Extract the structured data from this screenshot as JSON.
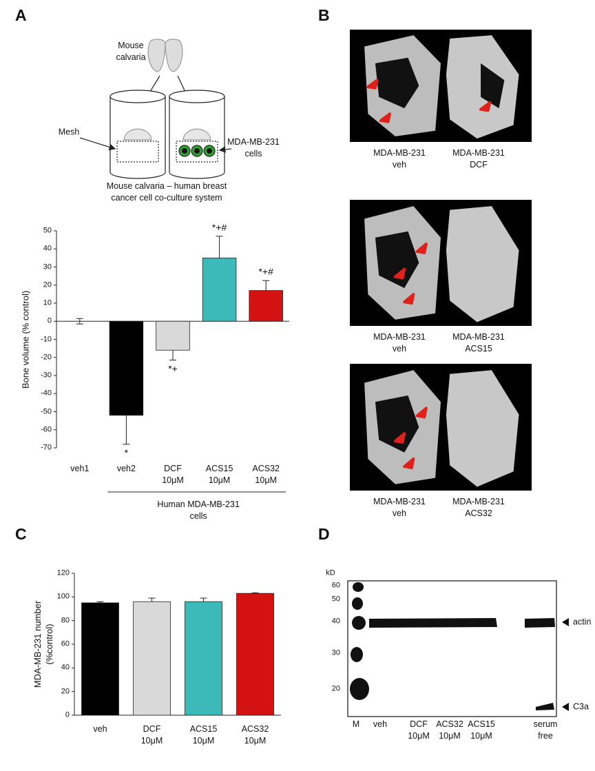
{
  "panel_labels": [
    "A",
    "B",
    "C",
    "D"
  ],
  "schematic": {
    "calvaria_label": "Mouse\ncalvaria",
    "mesh_label": "Mesh",
    "cells_label": "MDA-MB-231\ncells",
    "caption": "Mouse calvaria – human breast\ncancer cell co-culture system"
  },
  "chart_data": [
    {
      "type": "bar",
      "ylabel": "Bone volume (% control)",
      "categories": [
        "veh1",
        "veh2",
        "DCF\n10μM",
        "ACS15\n10μM",
        "ACS32\n10μM"
      ],
      "values": [
        0,
        -52,
        -16,
        35,
        17
      ],
      "errors": [
        1.5,
        16,
        5.5,
        12,
        5.5
      ],
      "colors": [
        "#000000",
        "#000000",
        "#d9d9d9",
        "#3cb9b9",
        "#d41212"
      ],
      "annotations": [
        null,
        "*",
        "*+",
        "*+#",
        "*+#"
      ],
      "group_label": "Human MDA-MB-231\ncells",
      "ylim": [
        -70,
        50
      ],
      "yticks": [
        -70,
        -60,
        -50,
        -40,
        -30,
        -20,
        -10,
        0,
        10,
        20,
        30,
        40,
        50
      ]
    },
    {
      "type": "bar",
      "ylabel": "MDA-MB-231 number\n(%control)",
      "categories": [
        "veh",
        "DCF\n10μM",
        "ACS15\n10μM",
        "ACS32\n10μM"
      ],
      "values": [
        95,
        96,
        96,
        103
      ],
      "errors": [
        1,
        3,
        3,
        0.5
      ],
      "colors": [
        "#000000",
        "#d9d9d9",
        "#3cb9b9",
        "#d41212"
      ],
      "ylim": [
        0,
        120
      ],
      "yticks": [
        0,
        20,
        40,
        60,
        80,
        100,
        120
      ]
    }
  ],
  "micro_ct": [
    {
      "left": "MDA-MB-231\nveh",
      "right": "MDA-MB-231\nDCF"
    },
    {
      "left": "MDA-MB-231\nveh",
      "right": "MDA-MB-231\nACS15"
    },
    {
      "left": "MDA-MB-231\nveh",
      "right": "MDA-MB-231\nACS32"
    }
  ],
  "blot": {
    "unit": "kD",
    "markers": [
      60,
      50,
      40,
      30,
      20
    ],
    "lanes": [
      "M",
      "veh",
      "DCF\n10μM",
      "ACS32\n10μM",
      "ACS15\n10μM",
      "serum\nfree"
    ],
    "bands": [
      "actin",
      "C3a"
    ]
  }
}
